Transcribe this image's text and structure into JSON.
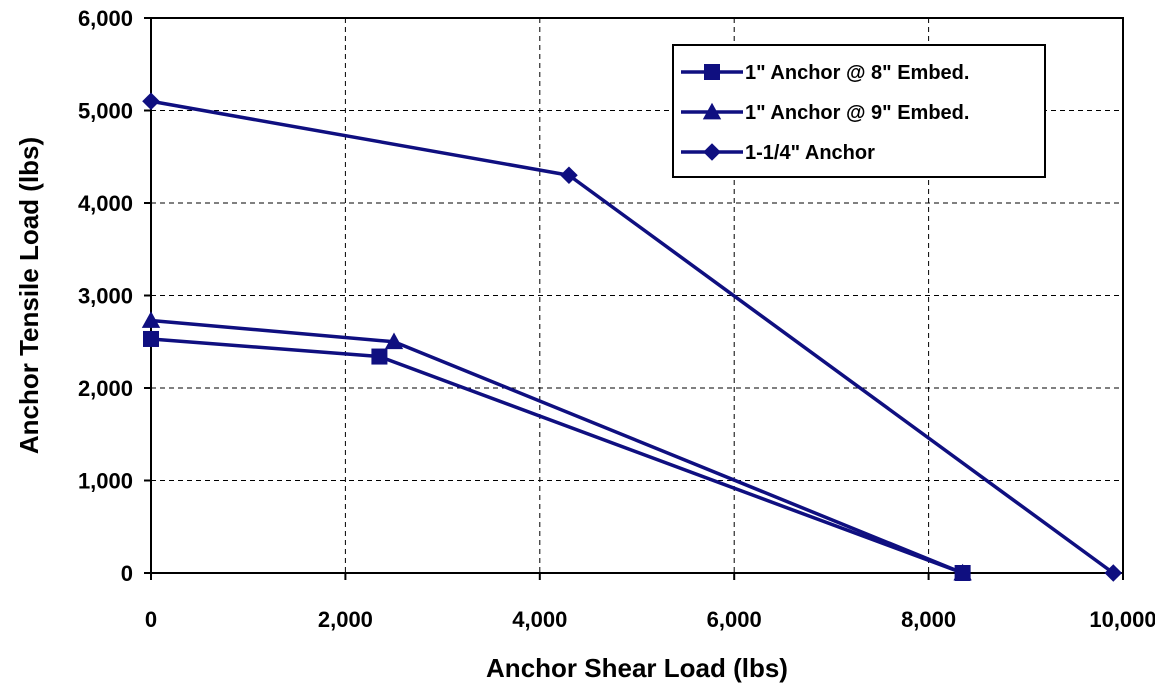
{
  "chart_data": {
    "type": "line",
    "title": "",
    "xlabel": "Anchor Shear Load (lbs)",
    "ylabel": "Anchor Tensile Load (lbs)",
    "xlim": [
      0,
      10000
    ],
    "ylim": [
      0,
      6000
    ],
    "x_ticks": [
      0,
      2000,
      4000,
      6000,
      8000,
      10000
    ],
    "y_ticks": [
      0,
      1000,
      2000,
      3000,
      4000,
      5000,
      6000
    ],
    "x_tick_labels": [
      "0",
      "2,000",
      "4,000",
      "6,000",
      "8,000",
      "10,000"
    ],
    "y_tick_labels": [
      "0",
      "1,000",
      "2,000",
      "3,000",
      "4,000",
      "5,000",
      "6,000"
    ],
    "grid": true,
    "legend_position": "top-right",
    "line_color": "#0f0f80",
    "series": [
      {
        "name": "1\" Anchor @ 8\" Embed.",
        "marker": "square",
        "points": [
          [
            0,
            2530
          ],
          [
            2350,
            2340
          ],
          [
            8350,
            0
          ]
        ]
      },
      {
        "name": "1\" Anchor @ 9\" Embed.",
        "marker": "triangle",
        "points": [
          [
            0,
            2730
          ],
          [
            2500,
            2500
          ],
          [
            8350,
            0
          ]
        ]
      },
      {
        "name": "1-1/4\" Anchor",
        "marker": "diamond",
        "points": [
          [
            0,
            5100
          ],
          [
            4300,
            4300
          ],
          [
            9900,
            0
          ]
        ]
      }
    ]
  }
}
